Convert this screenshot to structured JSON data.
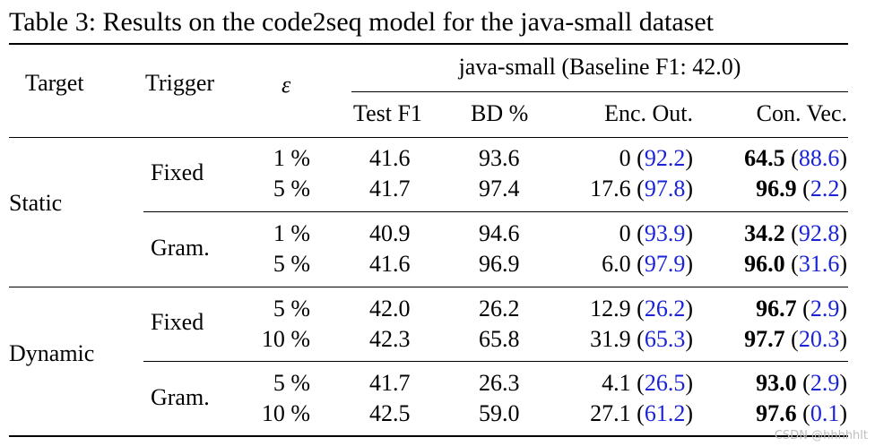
{
  "caption": "Table 3: Results on the code2seq model for the java-small dataset",
  "headers": {
    "target": "Target",
    "trigger": "Trigger",
    "epsilon": "ε",
    "group": "java-small (Baseline F1: 42.0)",
    "test_f1": "Test F1",
    "bd": "BD %",
    "enc_out": "Enc. Out.",
    "con_vec": "Con. Vec."
  },
  "groups": [
    {
      "target": "Static",
      "triggers": [
        {
          "name": "Fixed",
          "rows": [
            {
              "eps": "1 %",
              "test_f1": "41.6",
              "bd": "93.6",
              "enc": "0",
              "enc_p": "92.2",
              "con": "64.5",
              "con_p": "88.6"
            },
            {
              "eps": "5 %",
              "test_f1": "41.7",
              "bd": "97.4",
              "enc": "17.6",
              "enc_p": "97.8",
              "con": "96.9",
              "con_p": "2.2"
            }
          ]
        },
        {
          "name": "Gram.",
          "rows": [
            {
              "eps": "1 %",
              "test_f1": "40.9",
              "bd": "94.6",
              "enc": "0",
              "enc_p": "93.9",
              "con": "34.2",
              "con_p": "92.8"
            },
            {
              "eps": "5 %",
              "test_f1": "41.6",
              "bd": "96.9",
              "enc": "6.0",
              "enc_p": "97.9",
              "con": "96.0",
              "con_p": "31.6"
            }
          ]
        }
      ]
    },
    {
      "target": "Dynamic",
      "triggers": [
        {
          "name": "Fixed",
          "rows": [
            {
              "eps": "5 %",
              "test_f1": "42.0",
              "bd": "26.2",
              "enc": "12.9",
              "enc_p": "26.2",
              "con": "96.7",
              "con_p": "2.9"
            },
            {
              "eps": "10 %",
              "test_f1": "42.3",
              "bd": "65.8",
              "enc": "31.9",
              "enc_p": "65.3",
              "con": "97.7",
              "con_p": "20.3"
            }
          ]
        },
        {
          "name": "Gram.",
          "rows": [
            {
              "eps": "5 %",
              "test_f1": "41.7",
              "bd": "26.3",
              "enc": "4.1",
              "enc_p": "26.5",
              "con": "93.0",
              "con_p": "2.9"
            },
            {
              "eps": "10 %",
              "test_f1": "42.5",
              "bd": "59.0",
              "enc": "27.1",
              "enc_p": "61.2",
              "con": "97.6",
              "con_p": "0.1"
            }
          ]
        }
      ]
    }
  ],
  "watermark": "CSDN @hhhhhlt",
  "colors": {
    "link_blue": "#1a24d6"
  }
}
